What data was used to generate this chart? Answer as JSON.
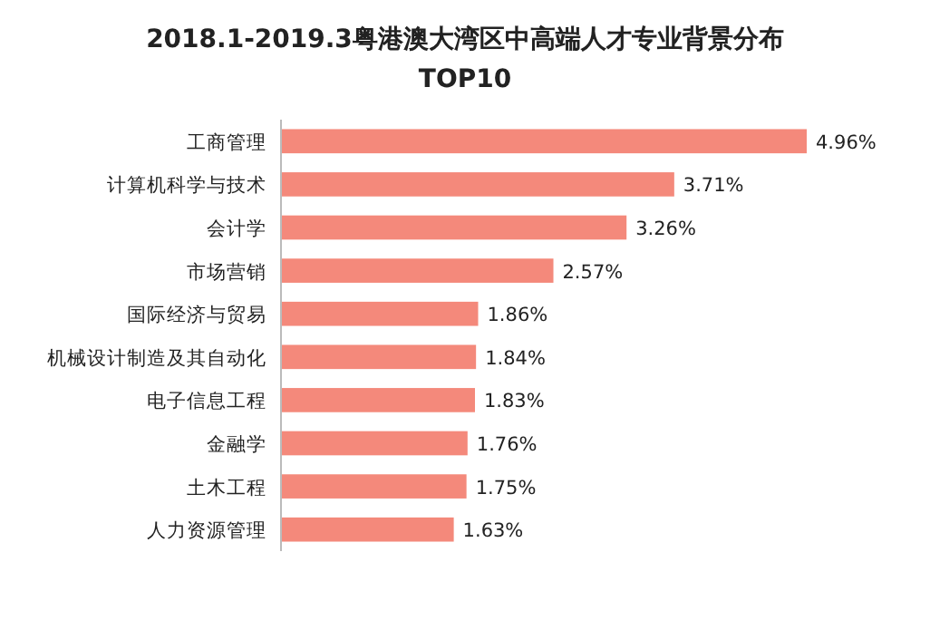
{
  "chart_data": {
    "type": "bar",
    "orientation": "horizontal",
    "title": "2018.1-2019.3粤港澳大湾区中高端人才专业背景分布",
    "subtitle": "TOP10",
    "categories": [
      "工商管理",
      "计算机科学与技术",
      "会计学",
      "市场营销",
      "国际经济与贸易",
      "机械设计制造及其自动化",
      "电子信息工程",
      "金融学",
      "土木工程",
      "人力资源管理"
    ],
    "values": [
      4.96,
      3.71,
      3.26,
      2.57,
      1.86,
      1.84,
      1.83,
      1.76,
      1.75,
      1.63
    ],
    "value_labels": [
      "4.96%",
      "3.71%",
      "3.26%",
      "2.57%",
      "1.86%",
      "1.84%",
      "1.83%",
      "1.76%",
      "1.75%",
      "1.63%"
    ],
    "color": "#f4897b"
  }
}
